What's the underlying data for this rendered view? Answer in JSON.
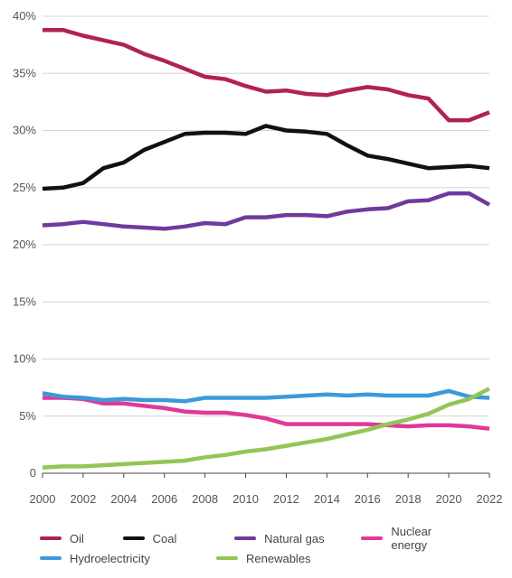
{
  "chart_data": {
    "type": "line",
    "x": [
      2000,
      2001,
      2002,
      2003,
      2004,
      2005,
      2006,
      2007,
      2008,
      2009,
      2010,
      2011,
      2012,
      2013,
      2014,
      2015,
      2016,
      2017,
      2018,
      2019,
      2020,
      2021,
      2022
    ],
    "x_ticks": [
      "2000",
      "2002",
      "2004",
      "2006",
      "2008",
      "2010",
      "2012",
      "2014",
      "2016",
      "2018",
      "2020",
      "2022"
    ],
    "y_ticks": [
      {
        "value": 0,
        "label": "0"
      },
      {
        "value": 5,
        "label": "5%"
      },
      {
        "value": 10,
        "label": "10%"
      },
      {
        "value": 15,
        "label": "15%"
      },
      {
        "value": 20,
        "label": "20%"
      },
      {
        "value": 25,
        "label": "25%"
      },
      {
        "value": 30,
        "label": "30%"
      },
      {
        "value": 35,
        "label": "35%"
      },
      {
        "value": 40,
        "label": "40%"
      }
    ],
    "ylim": [
      0,
      40
    ],
    "xlim": [
      2000,
      2022
    ],
    "grid": "horizontal",
    "legend_position": "bottom",
    "series": [
      {
        "name": "Oil",
        "color": "#b0244b",
        "values": [
          38.8,
          38.8,
          38.3,
          37.9,
          37.5,
          36.7,
          36.1,
          35.4,
          34.7,
          34.5,
          33.9,
          33.4,
          33.5,
          33.2,
          33.1,
          33.5,
          33.8,
          33.6,
          33.1,
          32.8,
          30.9,
          30.9,
          31.6
        ]
      },
      {
        "name": "Coal",
        "color": "#111111",
        "values": [
          24.9,
          25.0,
          25.4,
          26.7,
          27.2,
          28.3,
          29.0,
          29.7,
          29.8,
          29.8,
          29.7,
          30.4,
          30.0,
          29.9,
          29.7,
          28.7,
          27.8,
          27.5,
          27.1,
          26.7,
          26.8,
          26.9,
          26.7
        ]
      },
      {
        "name": "Natural gas",
        "color": "#6e3b9c",
        "values": [
          21.7,
          21.8,
          22.0,
          21.8,
          21.6,
          21.5,
          21.4,
          21.6,
          21.9,
          21.8,
          22.4,
          22.4,
          22.6,
          22.6,
          22.5,
          22.9,
          23.1,
          23.2,
          23.8,
          23.9,
          24.5,
          24.5,
          23.5
        ]
      },
      {
        "name": "Nuclear energy",
        "color": "#e0399a",
        "values": [
          6.6,
          6.6,
          6.5,
          6.1,
          6.1,
          5.9,
          5.7,
          5.4,
          5.3,
          5.3,
          5.1,
          4.8,
          4.3,
          4.3,
          4.3,
          4.3,
          4.3,
          4.2,
          4.1,
          4.2,
          4.2,
          4.1,
          3.9
        ]
      },
      {
        "name": "Hydroelectricity",
        "color": "#3a9ad9",
        "values": [
          7.0,
          6.7,
          6.6,
          6.4,
          6.5,
          6.4,
          6.4,
          6.3,
          6.6,
          6.6,
          6.6,
          6.6,
          6.7,
          6.8,
          6.9,
          6.8,
          6.9,
          6.8,
          6.8,
          6.8,
          7.2,
          6.7,
          6.6
        ]
      },
      {
        "name": "Renewables",
        "color": "#93c555",
        "values": [
          0.5,
          0.6,
          0.6,
          0.7,
          0.8,
          0.9,
          1.0,
          1.1,
          1.4,
          1.6,
          1.9,
          2.1,
          2.4,
          2.7,
          3.0,
          3.4,
          3.8,
          4.3,
          4.7,
          5.2,
          6.0,
          6.5,
          7.4
        ]
      }
    ]
  },
  "legend": {
    "row1": [
      "Oil",
      "Coal",
      "Natural gas",
      "Nuclear energy"
    ],
    "row2": [
      "Hydroelectricity",
      "Renewables"
    ]
  }
}
